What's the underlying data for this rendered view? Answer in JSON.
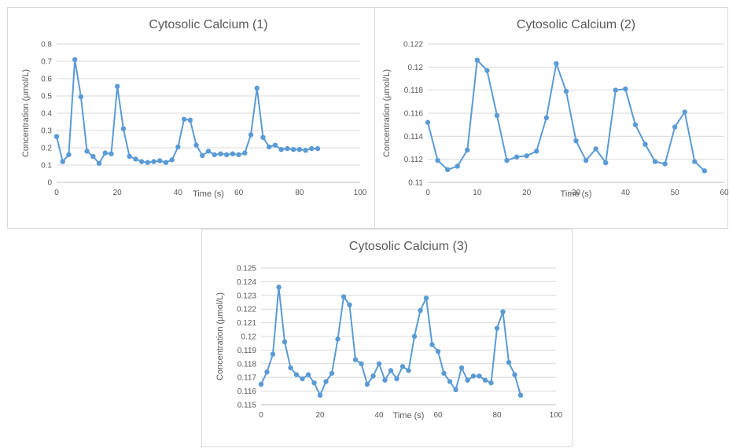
{
  "chart_data": [
    {
      "type": "line",
      "title": "Cytosolic Calcium (1)",
      "xlabel": "Time (s)",
      "ylabel": "Concentration (µmol/L)",
      "xlim": [
        0,
        100
      ],
      "ylim": [
        0,
        0.8
      ],
      "xticks": [
        "0",
        "20",
        "40",
        "60",
        "80",
        "100"
      ],
      "yticks": [
        "0",
        "0.1",
        "0.2",
        "0.3",
        "0.4",
        "0.5",
        "0.6",
        "0.7",
        "0.8"
      ],
      "grid": true,
      "legend": "none",
      "color": "#5b9bd5",
      "x": [
        0,
        2,
        4,
        6,
        8,
        10,
        12,
        14,
        16,
        18,
        20,
        22,
        24,
        26,
        28,
        30,
        32,
        34,
        36,
        38,
        40,
        42,
        44,
        46,
        48,
        50,
        52,
        54,
        56,
        58,
        60,
        62,
        64,
        66,
        68,
        70,
        72,
        74,
        76,
        78,
        80,
        82,
        84,
        86
      ],
      "y": [
        0.265,
        0.12,
        0.16,
        0.71,
        0.495,
        0.18,
        0.15,
        0.11,
        0.17,
        0.165,
        0.555,
        0.31,
        0.15,
        0.135,
        0.12,
        0.115,
        0.12,
        0.125,
        0.115,
        0.13,
        0.205,
        0.365,
        0.36,
        0.215,
        0.155,
        0.18,
        0.16,
        0.165,
        0.16,
        0.165,
        0.16,
        0.17,
        0.275,
        0.545,
        0.26,
        0.205,
        0.215,
        0.19,
        0.195,
        0.19,
        0.19,
        0.185,
        0.195,
        0.195
      ]
    },
    {
      "type": "line",
      "title": "Cytosolic Calcium (2)",
      "xlabel": "Time (s)",
      "ylabel": "Concentration (µmol/L)",
      "xlim": [
        0,
        60
      ],
      "ylim": [
        0.11,
        0.122
      ],
      "xticks": [
        "0",
        "10",
        "20",
        "30",
        "40",
        "50",
        "60"
      ],
      "yticks": [
        "0.11",
        "0.112",
        "0.114",
        "0.116",
        "0.118",
        "0.12",
        "0.122"
      ],
      "grid": true,
      "legend": "none",
      "color": "#5b9bd5",
      "x": [
        0,
        2,
        4,
        6,
        8,
        10,
        12,
        14,
        16,
        18,
        20,
        22,
        24,
        26,
        28,
        30,
        32,
        34,
        36,
        38,
        40,
        42,
        44,
        46,
        48,
        50,
        52,
        54,
        56
      ],
      "y": [
        0.1152,
        0.1119,
        0.1111,
        0.1114,
        0.1128,
        0.1206,
        0.1197,
        0.1158,
        0.1119,
        0.1122,
        0.1123,
        0.1127,
        0.1156,
        0.1203,
        0.1179,
        0.1136,
        0.1119,
        0.1129,
        0.1117,
        0.118,
        0.1181,
        0.115,
        0.1133,
        0.1118,
        0.1116,
        0.1148,
        0.1161,
        0.1118,
        0.111
      ]
    },
    {
      "type": "line",
      "title": "Cytosolic Calcium (3)",
      "xlabel": "Time (s)",
      "ylabel": "Concentration (µmol/L)",
      "xlim": [
        0,
        100
      ],
      "ylim": [
        0.115,
        0.125
      ],
      "xticks": [
        "0",
        "20",
        "40",
        "60",
        "80",
        "100"
      ],
      "yticks": [
        "0.115",
        "0.116",
        "0.117",
        "0.118",
        "0.119",
        "0.12",
        "0.121",
        "0.122",
        "0.123",
        "0.124",
        "0.125"
      ],
      "grid": true,
      "legend": "none",
      "color": "#5b9bd5",
      "x": [
        0,
        2,
        4,
        6,
        8,
        10,
        12,
        14,
        16,
        18,
        20,
        22,
        24,
        26,
        28,
        30,
        32,
        34,
        36,
        38,
        40,
        42,
        44,
        46,
        48,
        50,
        52,
        54,
        56,
        58,
        60,
        62,
        64,
        66,
        68,
        70,
        72,
        74,
        76,
        78,
        80,
        82,
        84,
        86,
        88
      ],
      "y": [
        0.1165,
        0.1174,
        0.1187,
        0.1236,
        0.1196,
        0.1177,
        0.1172,
        0.1169,
        0.1172,
        0.1166,
        0.1157,
        0.1167,
        0.1173,
        0.1198,
        0.1229,
        0.1223,
        0.1183,
        0.118,
        0.1165,
        0.1171,
        0.118,
        0.1168,
        0.1175,
        0.1169,
        0.1178,
        0.1175,
        0.12,
        0.1219,
        0.1228,
        0.1194,
        0.1189,
        0.1173,
        0.1167,
        0.1161,
        0.1177,
        0.1168,
        0.1171,
        0.1171,
        0.1168,
        0.1166,
        0.1206,
        0.1218,
        0.1181,
        0.1172,
        0.1157
      ]
    }
  ]
}
